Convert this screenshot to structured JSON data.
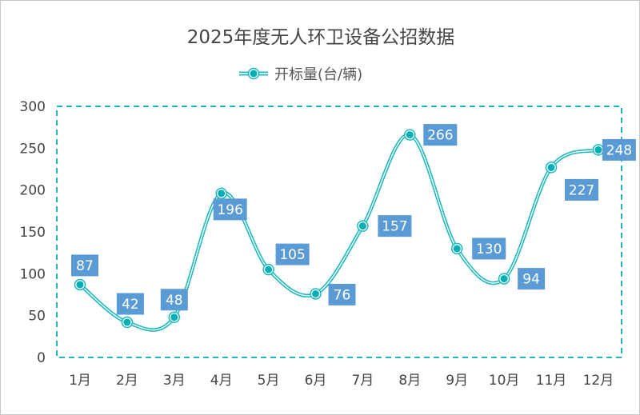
{
  "chart_data": {
    "type": "line",
    "title": "2025年度无人环卫设备公招数据",
    "categories": [
      "1月",
      "2月",
      "3月",
      "4月",
      "5月",
      "6月",
      "7月",
      "8月",
      "9月",
      "10月",
      "11月",
      "12月"
    ],
    "series": [
      {
        "name": "开标量(台/辆)",
        "values": [
          87,
          42,
          48,
          196,
          105,
          76,
          157,
          266,
          130,
          94,
          227,
          248
        ]
      }
    ],
    "ylim": [
      0,
      300
    ],
    "yticks": [
      0,
      50,
      100,
      150,
      200,
      250,
      300
    ],
    "smooth": true,
    "data_labels": true,
    "grid": false,
    "legend": "top",
    "colors": {
      "line": "#1DB8BE",
      "label_bg": "#5B9BD5",
      "plot_border": "#1DB8BE"
    }
  }
}
